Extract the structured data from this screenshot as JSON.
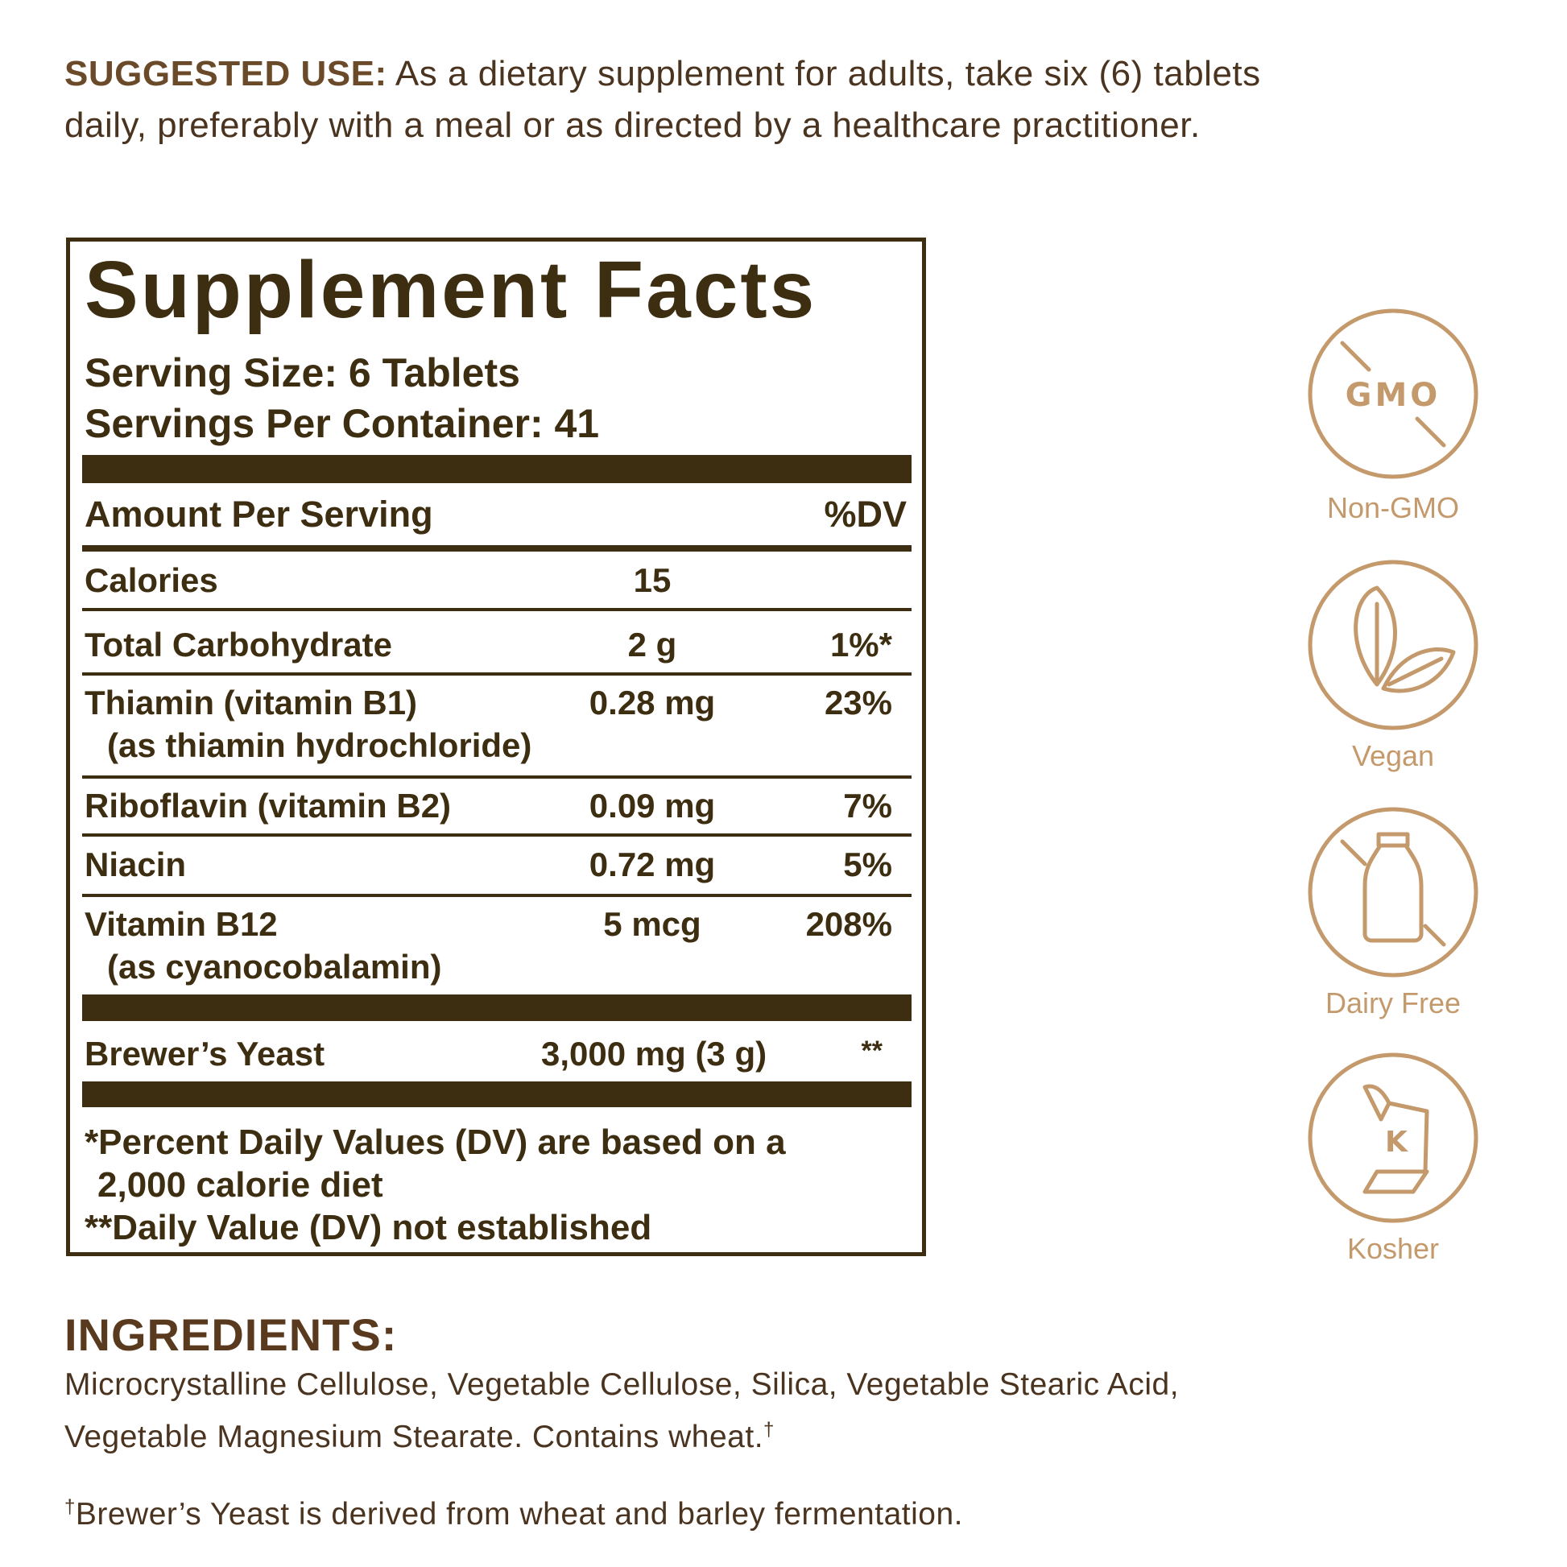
{
  "suggested_use": {
    "label": "SUGGESTED USE:",
    "text": "As a dietary supplement for adults, take six (6) tablets daily, preferably with a meal or as directed by a healthcare practitioner."
  },
  "facts": {
    "title": "Supplement Facts",
    "serving_size": "Serving Size: 6 Tablets",
    "servings_per_container": "Servings Per Container: 41",
    "header": {
      "amount": "Amount Per Serving",
      "dv": "%DV"
    },
    "rows": [
      {
        "name": "Calories",
        "amount": "15"
      },
      {
        "name": "Total Carbohydrate",
        "amount": "2 g",
        "dv": "1%*"
      },
      {
        "name": "Thiamin (vitamin B1)",
        "sub": "(as thiamin hydrochloride)",
        "amount": "0.28 mg",
        "dv": "23%"
      },
      {
        "name": "Riboflavin (vitamin B2)",
        "amount": "0.09 mg",
        "dv": "7%"
      },
      {
        "name": "Niacin",
        "amount": "0.72 mg",
        "dv": "5%"
      },
      {
        "name": "Vitamin B12",
        "sub": "(as cyanocobalamin)",
        "amount": "5 mcg",
        "dv": "208%"
      }
    ],
    "other": {
      "name": "Brewer’s Yeast",
      "amount": "3,000 mg (3 g)",
      "dv": "**"
    },
    "footnotes": [
      "*Percent Daily Values (DV) are based on a 2,000 calorie diet",
      "**Daily Value (DV) not established"
    ]
  },
  "badges": [
    {
      "icon_text": "GMO",
      "label": "Non-GMO"
    },
    {
      "label": "Vegan"
    },
    {
      "label": "Dairy Free"
    },
    {
      "icon_text": "K",
      "label": "Kosher"
    }
  ],
  "ingredients": {
    "heading": "INGREDIENTS:",
    "text": "Microcrystalline Cellulose, Vegetable Cellulose, Silica, Vegetable Stearic Acid, Vegetable Magnesium Stearate. Contains wheat.",
    "mark": "†",
    "footnote_mark": "†",
    "footnote": "Brewer’s Yeast is derived from wheat and barley fermentation."
  }
}
